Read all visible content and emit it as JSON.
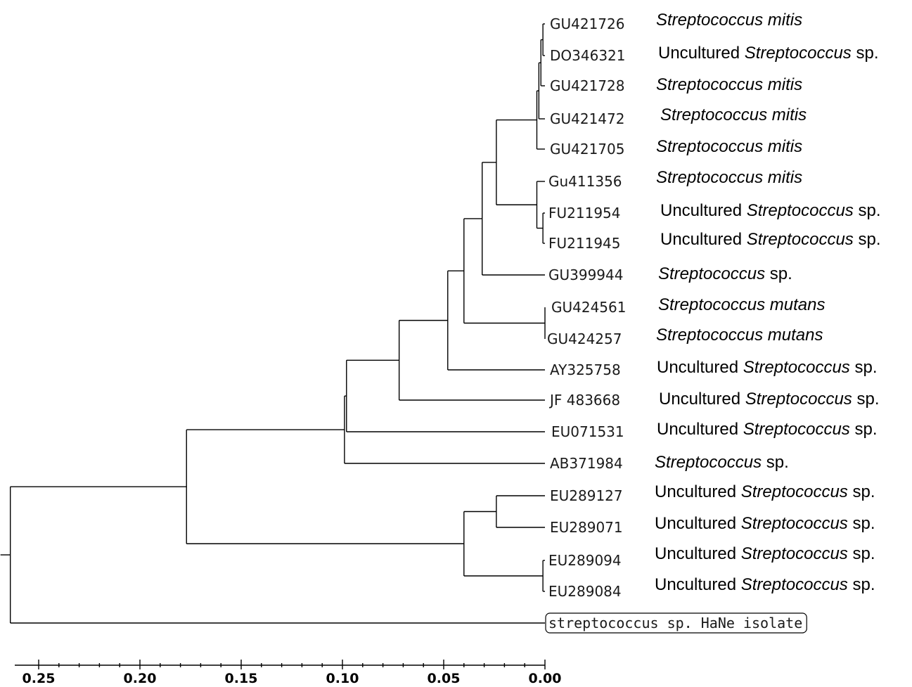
{
  "tree": {
    "leaves": [
      {
        "accession": "GU421726",
        "species": [
          {
            "t": "Streptococcus mitis",
            "i": true
          }
        ]
      },
      {
        "accession": "DO346321",
        "species": [
          {
            "t": "Uncultured ",
            "i": false
          },
          {
            "t": "Streptococcus",
            "i": true
          },
          {
            "t": " sp.",
            "i": false
          }
        ]
      },
      {
        "accession": "GU421728",
        "species": [
          {
            "t": "Streptococcus mitis",
            "i": true
          }
        ]
      },
      {
        "accession": "GU421472",
        "species": [
          {
            "t": "Streptococcus mitis",
            "i": true
          }
        ]
      },
      {
        "accession": "GU421705",
        "species": [
          {
            "t": "Streptococcus mitis",
            "i": true
          }
        ]
      },
      {
        "accession": "Gu411356",
        "species": [
          {
            "t": "Streptococcus mitis",
            "i": true
          }
        ]
      },
      {
        "accession": "FU211954",
        "species": [
          {
            "t": "Uncultured ",
            "i": false
          },
          {
            "t": "Streptococcus",
            "i": true
          },
          {
            "t": " sp.",
            "i": false
          }
        ]
      },
      {
        "accession": "FU211945",
        "species": [
          {
            "t": "Uncultured ",
            "i": false
          },
          {
            "t": "Streptococcus",
            "i": true
          },
          {
            "t": " sp.",
            "i": false
          }
        ]
      },
      {
        "accession": "GU399944",
        "species": [
          {
            "t": "Streptococcus",
            "i": true
          },
          {
            "t": " sp.",
            "i": false
          }
        ]
      },
      {
        "accession": "GU424561",
        "species": [
          {
            "t": "Streptococcus mutans",
            "i": true
          }
        ]
      },
      {
        "accession": "GU424257",
        "species": [
          {
            "t": "Streptococcus mutans",
            "i": true
          }
        ]
      },
      {
        "accession": "AY325758",
        "species": [
          {
            "t": "Uncultured ",
            "i": false
          },
          {
            "t": "Streptococcus",
            "i": true
          },
          {
            "t": " sp.",
            "i": false
          }
        ]
      },
      {
        "accession": "JF 483668",
        "species": [
          {
            "t": "Uncultured ",
            "i": false
          },
          {
            "t": "Streptococcus",
            "i": true
          },
          {
            "t": " sp.",
            "i": false
          }
        ]
      },
      {
        "accession": "EU071531",
        "species": [
          {
            "t": "Uncultured ",
            "i": false
          },
          {
            "t": "Streptococcus",
            "i": true
          },
          {
            "t": " sp.",
            "i": false
          }
        ]
      },
      {
        "accession": "AB371984",
        "species": [
          {
            "t": "Streptococcus",
            "i": true
          },
          {
            "t": " sp.",
            "i": false
          }
        ]
      },
      {
        "accession": "EU289127",
        "species": [
          {
            "t": "Uncultured ",
            "i": false
          },
          {
            "t": "Streptococcus",
            "i": true
          },
          {
            "t": " sp.",
            "i": false
          }
        ]
      },
      {
        "accession": "EU289071",
        "species": [
          {
            "t": "Uncultured ",
            "i": false
          },
          {
            "t": "Streptococcus",
            "i": true
          },
          {
            "t": " sp.",
            "i": false
          }
        ]
      },
      {
        "accession": "EU289094",
        "species": [
          {
            "t": "Uncultured ",
            "i": false
          },
          {
            "t": "Streptococcus",
            "i": true
          },
          {
            "t": " sp.",
            "i": false
          }
        ]
      },
      {
        "accession": "EU289084",
        "species": [
          {
            "t": "Uncultured ",
            "i": false
          },
          {
            "t": "Streptococcus",
            "i": true
          },
          {
            "t": " sp.",
            "i": false
          }
        ]
      },
      {
        "accession": "streptococcus sp. HaNe isolate",
        "species": [],
        "boxed": true
      }
    ],
    "nodes": [
      {
        "children": [
          0,
          1
        ],
        "height": 0.001
      },
      {
        "children": [
          20,
          2
        ],
        "height": 0.002
      },
      {
        "children": [
          21,
          3
        ],
        "height": 0.003
      },
      {
        "children": [
          22,
          4
        ],
        "height": 0.004
      },
      {
        "children": [
          6,
          7
        ],
        "height": 0.001
      },
      {
        "children": [
          5,
          24
        ],
        "height": 0.004
      },
      {
        "children": [
          23,
          25
        ],
        "height": 0.024
      },
      {
        "children": [
          26,
          8
        ],
        "height": 0.031
      },
      {
        "children": [
          9,
          10
        ],
        "height": 0.0
      },
      {
        "children": [
          27,
          28
        ],
        "height": 0.04
      },
      {
        "children": [
          29,
          11
        ],
        "height": 0.048
      },
      {
        "children": [
          30,
          12
        ],
        "height": 0.072
      },
      {
        "children": [
          31,
          13
        ],
        "height": 0.098
      },
      {
        "children": [
          32,
          14
        ],
        "height": 0.099
      },
      {
        "children": [
          15,
          16
        ],
        "height": 0.024
      },
      {
        "children": [
          17,
          18
        ],
        "height": 0.001
      },
      {
        "children": [
          34,
          35
        ],
        "height": 0.04
      },
      {
        "children": [
          33,
          36
        ],
        "height": 0.177
      },
      {
        "children": [
          37,
          19
        ],
        "height": 0.264
      }
    ]
  },
  "axis": {
    "min": 0.0,
    "max": 0.25,
    "ticks": [
      0.25,
      0.2,
      0.15,
      0.1,
      0.05,
      0.0
    ],
    "tick_labels": [
      "0.25",
      "0.20",
      "0.15",
      "0.10",
      "0.05",
      "0.00"
    ]
  }
}
